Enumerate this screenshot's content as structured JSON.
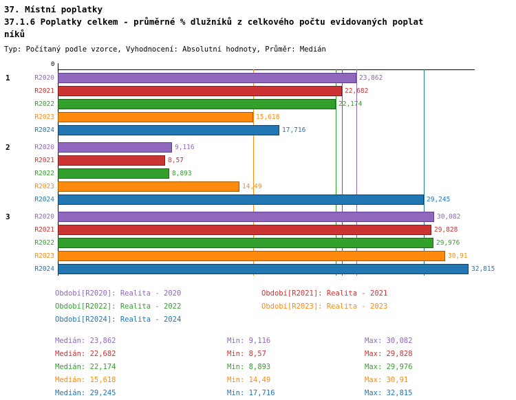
{
  "page": {
    "title_line1": "37. Místní poplatky",
    "title_line2": "37.1.6 Poplatky celkem - průměrné % dlužníků z celkového počtu evidovaných poplat",
    "title_line3": "níků",
    "subtitle": "Typ: Počítaný podle vzorce, Vyhodnocení: Absolutní hodnoty, Průměr: Medián"
  },
  "chart_data": {
    "type": "bar",
    "orientation": "horizontal",
    "axis": {
      "zero_label": "0",
      "xlim": [
        0,
        36.6
      ],
      "grid": false
    },
    "legend_position": "bottom",
    "series": [
      {
        "id": "R2020",
        "legend_label": "Období[R2020]: Realita - 2020",
        "fill": "#8f68bd",
        "border": "#5e3d8f",
        "median": 23.862
      },
      {
        "id": "R2021",
        "legend_label": "Období[R2021]: Realita - 2021",
        "fill": "#cc3333",
        "border": "#811d1d",
        "median": 22.682
      },
      {
        "id": "R2022",
        "legend_label": "Období[R2022]: Realita - 2022",
        "fill": "#33a02c",
        "border": "#1d651d",
        "median": 22.174
      },
      {
        "id": "R2023",
        "legend_label": "Období[R2023]: Realita - 2023",
        "fill": "#ff8a0d",
        "border": "#a35a00",
        "median": 15.618
      },
      {
        "id": "R2024",
        "legend_label": "Období[R2024]: Realita - 2024",
        "fill": "#2177b4",
        "border": "#123f63",
        "median": 29.245
      }
    ],
    "groups": [
      {
        "label": "1",
        "bars": [
          {
            "series": "R2020",
            "value": 23.862,
            "display": "23,862"
          },
          {
            "series": "R2021",
            "value": 22.682,
            "display": "22,682"
          },
          {
            "series": "R2022",
            "value": 22.174,
            "display": "22,174"
          },
          {
            "series": "R2023",
            "value": 15.618,
            "display": "15,618"
          },
          {
            "series": "R2024",
            "value": 17.716,
            "display": "17,716"
          }
        ]
      },
      {
        "label": "2",
        "bars": [
          {
            "series": "R2020",
            "value": 9.116,
            "display": "9,116"
          },
          {
            "series": "R2021",
            "value": 8.57,
            "display": "8,57"
          },
          {
            "series": "R2022",
            "value": 8.893,
            "display": "8,893"
          },
          {
            "series": "R2023",
            "value": 14.49,
            "display": "14,49"
          },
          {
            "series": "R2024",
            "value": 29.245,
            "display": "29,245"
          }
        ]
      },
      {
        "label": "3",
        "bars": [
          {
            "series": "R2020",
            "value": 30.082,
            "display": "30,082"
          },
          {
            "series": "R2021",
            "value": 29.828,
            "display": "29,828"
          },
          {
            "series": "R2022",
            "value": 29.976,
            "display": "29,976"
          },
          {
            "series": "R2023",
            "value": 30.91,
            "display": "30,91"
          },
          {
            "series": "R2024",
            "value": 32.815,
            "display": "32,815"
          }
        ]
      }
    ]
  },
  "stats_rows": [
    {
      "series": "R2020",
      "median": "Medián: 23,862",
      "min": "Min: 9,116",
      "max": "Max: 30,082"
    },
    {
      "series": "R2021",
      "median": "Medián: 22,682",
      "min": "Min: 8,57",
      "max": "Max: 29,828"
    },
    {
      "series": "R2022",
      "median": "Medián: 22,174",
      "min": "Min: 8,893",
      "max": "Max: 29,976"
    },
    {
      "series": "R2023",
      "median": "Medián: 15,618",
      "min": "Min: 14,49",
      "max": "Max: 30,91"
    },
    {
      "series": "R2024",
      "median": "Medián: 29,245",
      "min": "Min: 17,716",
      "max": "Max: 32,815"
    }
  ]
}
